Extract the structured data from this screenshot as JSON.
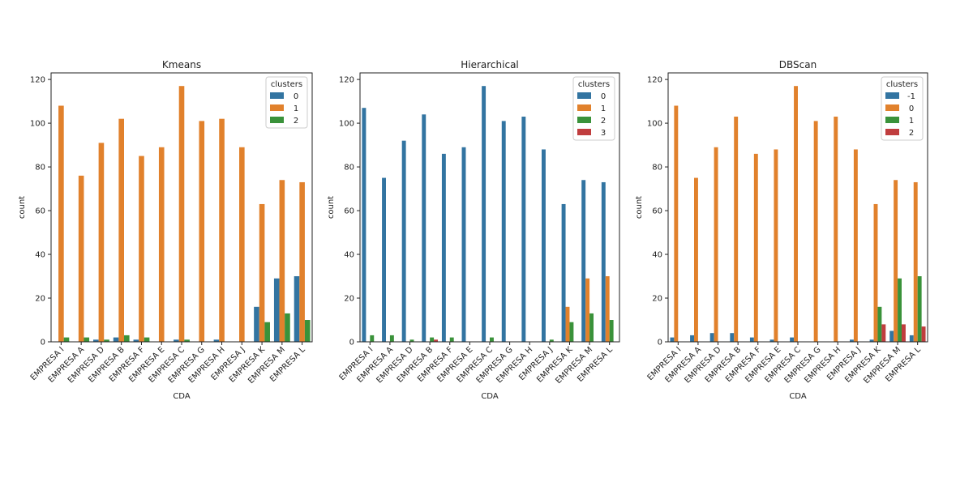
{
  "colors": {
    "0": "#3274a1",
    "1": "#e1812c",
    "2": "#3a923a",
    "3": "#c03d3e",
    "axis": "#222222",
    "legend_border": "#cccccc"
  },
  "chart_data": [
    {
      "type": "bar",
      "title": "Kmeans",
      "xlabel": "CDA",
      "ylabel": "count",
      "ylim": [
        0,
        123
      ],
      "yticks": [
        "0",
        "20",
        "40",
        "60",
        "80",
        "100",
        "120"
      ],
      "legend_title": "clusters",
      "legend_position": "top-right",
      "categories": [
        "EMPRESA I",
        "EMPRESA A",
        "EMPRESA D",
        "EMPRESA B",
        "EMPRESA F",
        "EMPRESA E",
        "EMPRESA C",
        "EMPRESA G",
        "EMPRESA H",
        "EMPRESA J",
        "EMPRESA K",
        "EMPRESA M",
        "EMPRESA L"
      ],
      "series": [
        {
          "name": "0",
          "color_key": "0",
          "values": [
            0,
            0,
            1,
            2,
            1,
            0,
            1,
            0,
            1,
            0,
            16,
            29,
            30
          ]
        },
        {
          "name": "1",
          "color_key": "1",
          "values": [
            108,
            76,
            91,
            102,
            85,
            89,
            117,
            101,
            102,
            89,
            63,
            74,
            73
          ]
        },
        {
          "name": "2",
          "color_key": "2",
          "values": [
            2,
            2,
            1,
            3,
            2,
            0,
            1,
            0,
            0,
            0,
            9,
            13,
            10
          ]
        }
      ]
    },
    {
      "type": "bar",
      "title": "Hierarchical",
      "xlabel": "CDA",
      "ylabel": "count",
      "ylim": [
        0,
        123
      ],
      "yticks": [
        "0",
        "20",
        "40",
        "60",
        "80",
        "100",
        "120"
      ],
      "legend_title": "clusters",
      "legend_position": "top-right",
      "categories": [
        "EMPRESA I",
        "EMPRESA A",
        "EMPRESA D",
        "EMPRESA B",
        "EMPRESA F",
        "EMPRESA E",
        "EMPRESA C",
        "EMPRESA G",
        "EMPRESA H",
        "EMPRESA J",
        "EMPRESA K",
        "EMPRESA M",
        "EMPRESA L"
      ],
      "series": [
        {
          "name": "0",
          "color_key": "0",
          "values": [
            107,
            75,
            92,
            104,
            86,
            89,
            117,
            101,
            103,
            88,
            63,
            74,
            73
          ]
        },
        {
          "name": "1",
          "color_key": "1",
          "values": [
            0,
            0,
            0,
            0,
            0,
            0,
            0,
            0,
            0,
            0,
            16,
            29,
            30
          ]
        },
        {
          "name": "2",
          "color_key": "2",
          "values": [
            3,
            3,
            1,
            2,
            2,
            0,
            2,
            0,
            0,
            1,
            9,
            13,
            10
          ]
        },
        {
          "name": "3",
          "color_key": "3",
          "values": [
            0,
            0,
            0,
            1,
            0,
            0,
            0,
            0,
            0,
            0,
            0,
            0,
            0
          ]
        }
      ]
    },
    {
      "type": "bar",
      "title": "DBScan",
      "xlabel": "CDA",
      "ylabel": "count",
      "ylim": [
        0,
        123
      ],
      "yticks": [
        "0",
        "20",
        "40",
        "60",
        "80",
        "100",
        "120"
      ],
      "legend_title": "clusters",
      "legend_position": "top-right",
      "categories": [
        "EMPRESA I",
        "EMPRESA A",
        "EMPRESA D",
        "EMPRESA B",
        "EMPRESA F",
        "EMPRESA E",
        "EMPRESA C",
        "EMPRESA G",
        "EMPRESA H",
        "EMPRESA J",
        "EMPRESA K",
        "EMPRESA M",
        "EMPRESA L"
      ],
      "series": [
        {
          "name": "-1",
          "color_key": "0",
          "values": [
            2,
            3,
            4,
            4,
            2,
            1,
            2,
            0,
            0,
            1,
            1,
            5,
            3
          ]
        },
        {
          "name": "0",
          "color_key": "1",
          "values": [
            108,
            75,
            89,
            103,
            86,
            88,
            117,
            101,
            103,
            88,
            63,
            74,
            73
          ]
        },
        {
          "name": "1",
          "color_key": "2",
          "values": [
            0,
            0,
            0,
            0,
            0,
            0,
            0,
            0,
            0,
            0,
            16,
            29,
            30
          ]
        },
        {
          "name": "2",
          "color_key": "3",
          "values": [
            0,
            0,
            0,
            0,
            0,
            0,
            0,
            0,
            0,
            0,
            8,
            8,
            7
          ]
        }
      ]
    }
  ]
}
